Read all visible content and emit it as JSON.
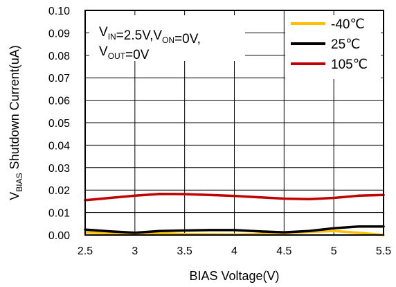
{
  "chart_data": {
    "type": "line",
    "title": "",
    "xlabel": "BIAS Voltage(V)",
    "ylabel": {
      "prefix": "V",
      "subscript": "BIAS",
      "suffix": " Shutdown Current(uA)"
    },
    "xlim": [
      2.5,
      5.5
    ],
    "ylim": [
      0.0,
      0.1
    ],
    "x_ticks": [
      "2.5",
      "3",
      "3.5",
      "4",
      "4.5",
      "5",
      "5.5"
    ],
    "y_ticks": [
      "0.00",
      "0.01",
      "0.02",
      "0.03",
      "0.04",
      "0.05",
      "0.06",
      "0.07",
      "0.08",
      "0.09",
      "0.10"
    ],
    "grid": true,
    "legend_position": "top-right",
    "annotation": {
      "line1": [
        {
          "text": "V",
          "sub": "IN"
        },
        {
          "text": "=2.5V,V",
          "sub": "ON"
        },
        {
          "text": "=0V,",
          "sub": ""
        }
      ],
      "line2": [
        {
          "text": "V",
          "sub": "OUT"
        },
        {
          "text": "=0V",
          "sub": ""
        }
      ]
    },
    "series": [
      {
        "name": "-40℃",
        "color": "#ffc000",
        "x": [
          2.5,
          2.75,
          3.0,
          3.25,
          3.5,
          3.75,
          4.0,
          4.25,
          4.5,
          4.75,
          5.0,
          5.25,
          5.5
        ],
        "y": [
          0.0012,
          0.0009,
          0.0006,
          0.0008,
          0.0004,
          0.0003,
          0.0002,
          0.0004,
          0.0008,
          0.0014,
          0.0018,
          0.001,
          0.0
        ]
      },
      {
        "name": "25℃",
        "color": "#000000",
        "x": [
          2.5,
          2.75,
          3.0,
          3.25,
          3.5,
          3.75,
          4.0,
          4.25,
          4.5,
          4.75,
          5.0,
          5.25,
          5.5
        ],
        "y": [
          0.0024,
          0.0016,
          0.001,
          0.0018,
          0.002,
          0.0022,
          0.0022,
          0.0016,
          0.0012,
          0.0018,
          0.003,
          0.0038,
          0.0038
        ]
      },
      {
        "name": "105℃",
        "color": "#c00000",
        "x": [
          2.5,
          2.75,
          3.0,
          3.25,
          3.5,
          3.75,
          4.0,
          4.25,
          4.5,
          4.75,
          5.0,
          5.25,
          5.5
        ],
        "y": [
          0.0155,
          0.0165,
          0.0175,
          0.0183,
          0.0182,
          0.0178,
          0.0174,
          0.0168,
          0.0162,
          0.016,
          0.0165,
          0.0175,
          0.0178
        ]
      }
    ]
  }
}
